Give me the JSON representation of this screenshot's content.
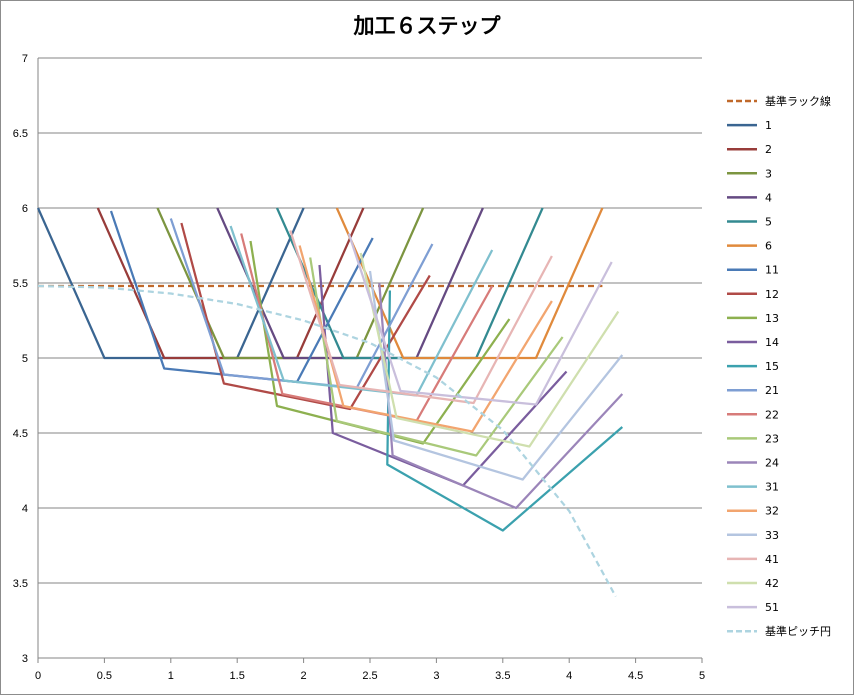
{
  "chart_data": {
    "type": "line",
    "title": "加工６ステップ",
    "xlabel": "",
    "ylabel": "",
    "xlim": [
      0,
      5
    ],
    "ylim": [
      3,
      7
    ],
    "x_ticks": [
      "0",
      "0.5",
      "1",
      "1.5",
      "2",
      "2.5",
      "3",
      "3.5",
      "4",
      "4.5",
      "5"
    ],
    "y_ticks": [
      "3",
      "3.5",
      "4",
      "4.5",
      "5",
      "5.5",
      "6",
      "6.5",
      "7"
    ],
    "grid": "horizontal",
    "legend_position": "right",
    "series": [
      {
        "name": "基準ラック線",
        "color": "#c0692a",
        "dash": "dashed",
        "points": [
          [
            0,
            5.48
          ],
          [
            4.25,
            5.48
          ]
        ]
      },
      {
        "name": "1",
        "color": "#3a6591",
        "points": [
          [
            0,
            6.0
          ],
          [
            0.5,
            5.0
          ],
          [
            1.5,
            5.0
          ],
          [
            2.0,
            6.0
          ]
        ]
      },
      {
        "name": "2",
        "color": "#983c3a",
        "points": [
          [
            0.45,
            6.0
          ],
          [
            0.95,
            5.0
          ],
          [
            1.95,
            5.0
          ],
          [
            2.45,
            6.0
          ]
        ]
      },
      {
        "name": "3",
        "color": "#7c9540",
        "points": [
          [
            0.9,
            6.0
          ],
          [
            1.4,
            5.0
          ],
          [
            2.4,
            5.0
          ],
          [
            2.9,
            6.0
          ]
        ]
      },
      {
        "name": "4",
        "color": "#654a82",
        "points": [
          [
            1.35,
            6.0
          ],
          [
            1.85,
            5.0
          ],
          [
            2.85,
            5.0
          ],
          [
            3.35,
            6.0
          ]
        ]
      },
      {
        "name": "5",
        "color": "#338a91",
        "points": [
          [
            1.8,
            6.0
          ],
          [
            2.3,
            5.0
          ],
          [
            3.3,
            5.0
          ],
          [
            3.8,
            6.0
          ]
        ]
      },
      {
        "name": "6",
        "color": "#e08a3c",
        "points": [
          [
            2.25,
            6.0
          ],
          [
            2.75,
            5.0
          ],
          [
            3.75,
            5.0
          ],
          [
            4.25,
            6.0
          ]
        ]
      },
      {
        "name": "11",
        "color": "#4a7ab6",
        "points": [
          [
            0.55,
            5.98
          ],
          [
            0.95,
            4.93
          ],
          [
            1.95,
            4.84
          ],
          [
            2.52,
            5.8
          ]
        ]
      },
      {
        "name": "12",
        "color": "#b04a47",
        "points": [
          [
            1.08,
            5.9
          ],
          [
            1.4,
            4.83
          ],
          [
            2.35,
            4.66
          ],
          [
            2.95,
            5.55
          ]
        ]
      },
      {
        "name": "13",
        "color": "#8db04f",
        "points": [
          [
            1.6,
            5.78
          ],
          [
            1.8,
            4.68
          ],
          [
            2.9,
            4.43
          ],
          [
            3.55,
            5.26
          ]
        ]
      },
      {
        "name": "14",
        "color": "#7a5d9e",
        "points": [
          [
            2.12,
            5.62
          ],
          [
            2.22,
            4.5
          ],
          [
            3.2,
            4.15
          ],
          [
            3.98,
            4.91
          ]
        ]
      },
      {
        "name": "15",
        "color": "#3ba1ae",
        "points": [
          [
            2.65,
            5.45
          ],
          [
            2.63,
            4.29
          ],
          [
            3.5,
            3.85
          ],
          [
            4.4,
            4.54
          ]
        ]
      },
      {
        "name": "21",
        "color": "#7e9ed3",
        "points": [
          [
            1.0,
            5.93
          ],
          [
            1.4,
            4.89
          ],
          [
            2.4,
            4.8
          ],
          [
            2.97,
            5.76
          ]
        ]
      },
      {
        "name": "22",
        "color": "#d77b79",
        "points": [
          [
            1.53,
            5.83
          ],
          [
            1.84,
            4.76
          ],
          [
            2.85,
            4.58
          ],
          [
            3.42,
            5.48
          ]
        ]
      },
      {
        "name": "23",
        "color": "#a9c97a",
        "points": [
          [
            2.05,
            5.67
          ],
          [
            2.25,
            4.58
          ],
          [
            3.3,
            4.35
          ],
          [
            3.95,
            5.14
          ]
        ]
      },
      {
        "name": "24",
        "color": "#9b85b9",
        "points": [
          [
            2.57,
            5.5
          ],
          [
            2.67,
            4.35
          ],
          [
            3.6,
            4.0
          ],
          [
            4.4,
            4.76
          ]
        ]
      },
      {
        "name": "31",
        "color": "#7fc0ce",
        "points": [
          [
            1.45,
            5.88
          ],
          [
            1.85,
            4.85
          ],
          [
            2.85,
            4.75
          ],
          [
            3.42,
            5.72
          ]
        ]
      },
      {
        "name": "32",
        "color": "#f2a56f",
        "points": [
          [
            1.97,
            5.75
          ],
          [
            2.3,
            4.68
          ],
          [
            3.27,
            4.51
          ],
          [
            3.87,
            5.38
          ]
        ]
      },
      {
        "name": "33",
        "color": "#b4c5e0",
        "points": [
          [
            2.5,
            5.58
          ],
          [
            2.68,
            4.45
          ],
          [
            3.65,
            4.19
          ],
          [
            4.4,
            5.02
          ]
        ]
      },
      {
        "name": "41",
        "color": "#e7b5b4",
        "points": [
          [
            1.9,
            5.85
          ],
          [
            2.27,
            4.82
          ],
          [
            3.28,
            4.7
          ],
          [
            3.87,
            5.68
          ]
        ]
      },
      {
        "name": "42",
        "color": "#cfdfae",
        "points": [
          [
            2.43,
            5.7
          ],
          [
            2.7,
            4.6
          ],
          [
            3.7,
            4.41
          ],
          [
            4.37,
            5.31
          ]
        ]
      },
      {
        "name": "51",
        "color": "#c9bfdc",
        "points": [
          [
            2.34,
            5.83
          ],
          [
            2.73,
            4.78
          ],
          [
            3.75,
            4.69
          ],
          [
            4.32,
            5.64
          ]
        ]
      },
      {
        "name": "基準ピッチ円",
        "color": "#add4e0",
        "dash": "dashed",
        "points": [
          [
            0,
            5.48
          ],
          [
            0.5,
            5.47
          ],
          [
            1.0,
            5.43
          ],
          [
            1.5,
            5.36
          ],
          [
            2.0,
            5.25
          ],
          [
            2.5,
            5.1
          ],
          [
            3.0,
            4.87
          ],
          [
            3.5,
            4.52
          ],
          [
            4.0,
            3.98
          ],
          [
            4.35,
            3.41
          ]
        ]
      }
    ]
  }
}
